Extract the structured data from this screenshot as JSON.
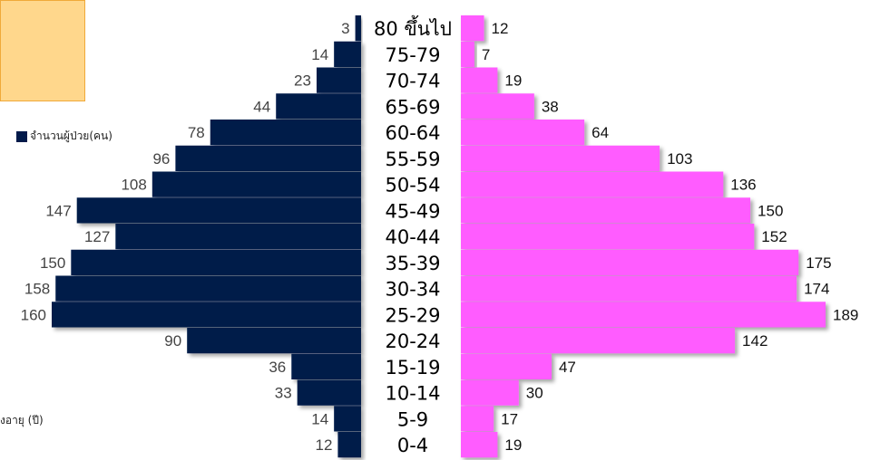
{
  "legend": {
    "male_label": "จำนวนผู้ป่วย(คน)",
    "male_color": "#011a4a",
    "female_color": "#ff5cff"
  },
  "axis_note": "งอายุ (ปี)",
  "chart_data": {
    "type": "bar",
    "orientation": "horizontal-pyramid",
    "categories": [
      "80 ขึ้นไป",
      "75-79",
      "70-74",
      "65-69",
      "60-64",
      "55-59",
      "50-54",
      "45-49",
      "40-44",
      "35-39",
      "30-34",
      "25-29",
      "20-24",
      "15-19",
      "10-14",
      "5-9",
      "0-4"
    ],
    "series": [
      {
        "name": "จำนวนผู้ป่วย(คน)",
        "side": "left",
        "color": "#011a4a",
        "values": [
          3,
          14,
          23,
          44,
          78,
          96,
          108,
          147,
          127,
          150,
          158,
          160,
          90,
          36,
          33,
          14,
          12
        ]
      },
      {
        "side": "right",
        "color": "#ff5cff",
        "values": [
          12,
          7,
          19,
          38,
          64,
          103,
          136,
          150,
          152,
          175,
          174,
          189,
          142,
          47,
          30,
          17,
          19
        ]
      }
    ],
    "xlim": [
      0,
      200
    ]
  }
}
